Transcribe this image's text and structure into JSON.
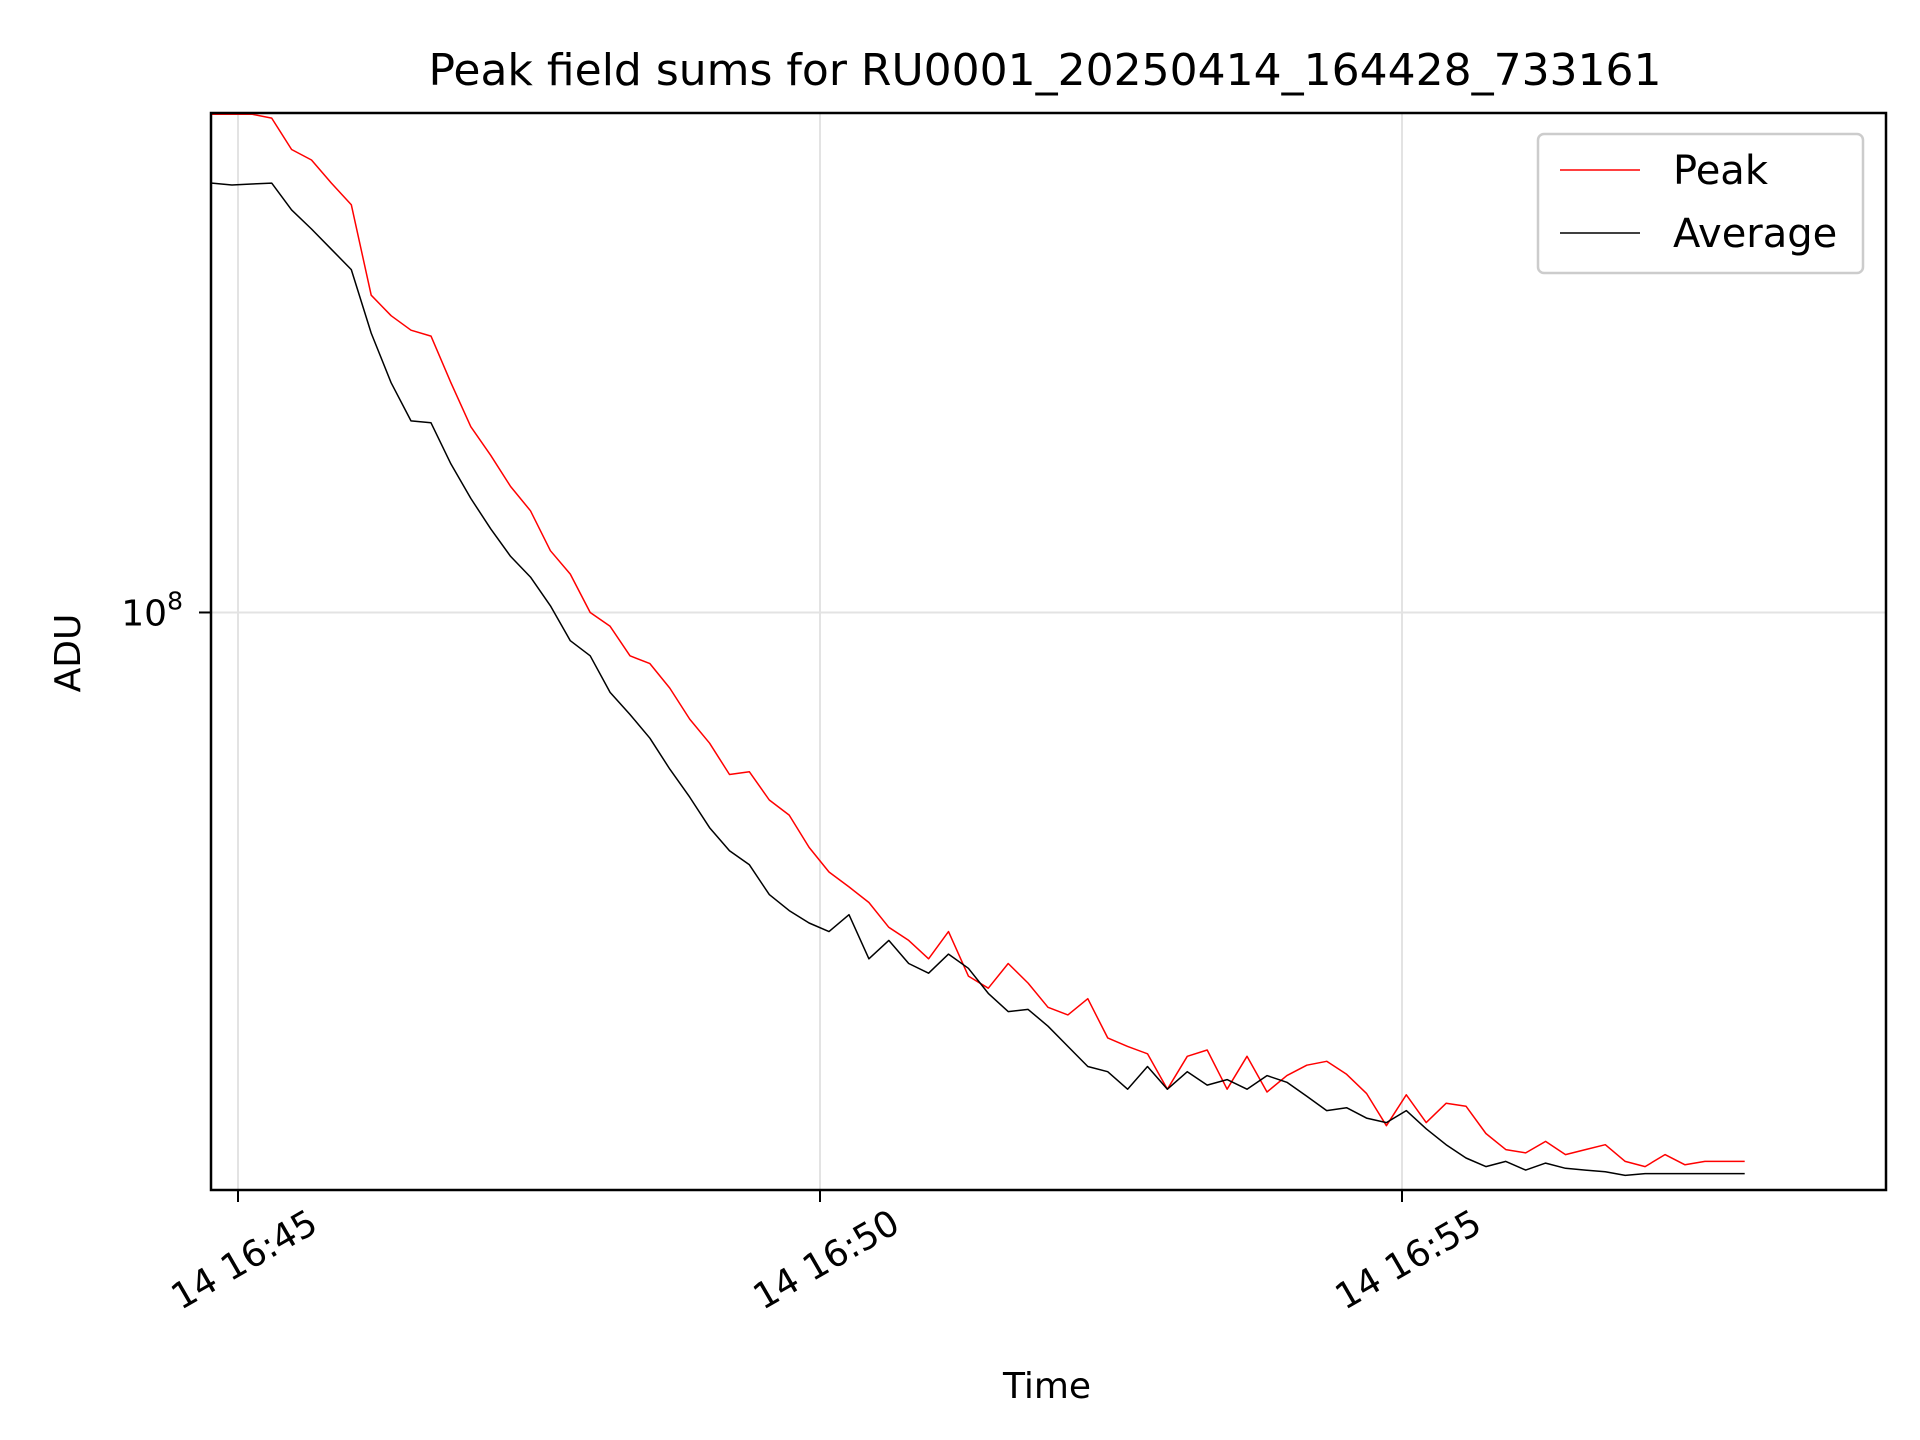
{
  "chart_data": {
    "type": "line",
    "title": "Peak field sums for RU0001_20250414_164428_733161",
    "xlabel": "Time",
    "ylabel": "ADU",
    "yscale": "log",
    "grid": true,
    "legend_placement": "top-right",
    "x_tick_labels": [
      "14 16:45",
      "14 16:50",
      "14 16:55"
    ],
    "y_tick_labels": [
      {
        "base": "10",
        "exp": "8",
        "value": 100000000
      }
    ],
    "series": [
      {
        "name": "Peak",
        "color": "#ff0000",
        "values": [
          435000000.0,
          435000000.0,
          435000000.0,
          430000000.0,
          392000000.0,
          380000000.0,
          355000000.0,
          333000000.0,
          255000000.0,
          240000000.0,
          230000000.0,
          226000000.0,
          197000000.0,
          173000000.0,
          159000000.0,
          145000000.0,
          135000000.0,
          120000000.0,
          112000000.0,
          100000000.0,
          96000000.0,
          88000000.0,
          86000000.0,
          80000000.0,
          73000000.0,
          68000000.0,
          62000000.0,
          62500000.0,
          57500000.0,
          55000000.0,
          50000000.0,
          46500000.0,
          44500000.0,
          42500000.0,
          39500000.0,
          38000000.0,
          36000000.0,
          39000000.0,
          34200000.0,
          33000000.0,
          35500000.0,
          33500000.0,
          31200000.0,
          30500000.0,
          32000000.0,
          28500000.0,
          27800000.0,
          27200000.0,
          24500000.0,
          27000000.0,
          27500000.0,
          24500000.0,
          27000000.0,
          24300000.0,
          25500000.0,
          26300000.0,
          26600000.0,
          25600000.0,
          24200000.0,
          22000000.0,
          24100000.0,
          22200000.0,
          23500000.0,
          23300000.0,
          21500000.0,
          20500000.0,
          20300000.0,
          21000000.0,
          20200000.0,
          20500000.0,
          20800000.0,
          19800000.0,
          19500000.0,
          20200000.0,
          19600000.0,
          19800000.0,
          19800000.0,
          19800000.0
        ]
      },
      {
        "name": "Average",
        "color": "#000000",
        "values": [
          355000000.0,
          353000000.0,
          354000000.0,
          355000000.0,
          328000000.0,
          310000000.0,
          292000000.0,
          275000000.0,
          228000000.0,
          197000000.0,
          176000000.0,
          175000000.0,
          155000000.0,
          140000000.0,
          128000000.0,
          118000000.0,
          111000000.0,
          102000000.0,
          92000000.0,
          88000000.0,
          79000000.0,
          74000000.0,
          69000000.0,
          63000000.0,
          58000000.0,
          53000000.0,
          49500000.0,
          47500000.0,
          43500000.0,
          41500000.0,
          40000000.0,
          39000000.0,
          41000000.0,
          36000000.0,
          38000000.0,
          35500000.0,
          34500000.0,
          36500000.0,
          35000000.0,
          32500000.0,
          30800000.0,
          31000000.0,
          29500000.0,
          27800000.0,
          26200000.0,
          25800000.0,
          24500000.0,
          26200000.0,
          24500000.0,
          25800000.0,
          24800000.0,
          25200000.0,
          24500000.0,
          25500000.0,
          25000000.0,
          24000000.0,
          23000000.0,
          23200000.0,
          22500000.0,
          22200000.0,
          23000000.0,
          21800000.0,
          20800000.0,
          20000000.0,
          19500000.0,
          19800000.0,
          19300000.0,
          19700000.0,
          19400000.0,
          19300000.0,
          19200000.0,
          19000000.0,
          19100000.0,
          19100000.0,
          19100000.0,
          19100000.0,
          19100000.0,
          19100000.0
        ]
      }
    ]
  }
}
